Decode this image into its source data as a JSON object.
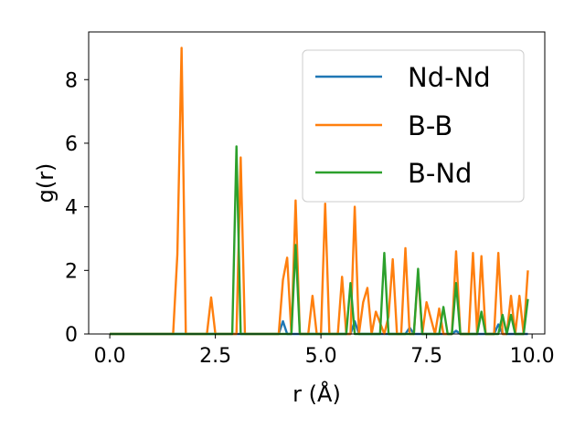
{
  "chart_data": {
    "type": "line",
    "title": "",
    "xlabel": "r (Å)",
    "ylabel": "g(r)",
    "xlim": [
      -0.5,
      10.3
    ],
    "ylim": [
      0,
      9.5
    ],
    "xticks": [
      "0.0",
      "2.5",
      "5.0",
      "7.5",
      "10.0"
    ],
    "xtick_values": [
      0,
      2.5,
      5,
      7.5,
      10
    ],
    "yticks": [
      "0",
      "2",
      "4",
      "6",
      "8"
    ],
    "ytick_values": [
      0,
      2,
      4,
      6,
      8
    ],
    "grid": false,
    "legend_position": "top-right",
    "series": [
      {
        "name": "Nd-Nd",
        "color": "#1f77b4",
        "x": [
          0,
          4.0,
          4.1,
          4.2,
          5.7,
          5.8,
          5.9,
          7.0,
          7.1,
          7.2,
          8.1,
          8.2,
          8.3,
          9.1,
          9.2,
          9.3,
          9.9
        ],
        "y": [
          0,
          0,
          0.4,
          0,
          0,
          0.4,
          0,
          0,
          0.2,
          0,
          0,
          0.1,
          0,
          0,
          0.3,
          0,
          0
        ]
      },
      {
        "name": "B-B",
        "color": "#ff7f0e",
        "x": [
          0,
          1.5,
          1.6,
          1.7,
          1.8,
          2.3,
          2.4,
          2.5,
          3.0,
          3.1,
          3.2,
          4.0,
          4.1,
          4.2,
          4.3,
          4.4,
          4.5,
          4.7,
          4.8,
          4.9,
          5.0,
          5.1,
          5.2,
          5.4,
          5.5,
          5.6,
          5.7,
          5.8,
          5.9,
          6.0,
          6.1,
          6.2,
          6.3,
          6.5,
          6.6,
          6.7,
          6.8,
          6.9,
          7.0,
          7.1,
          7.2,
          7.3,
          7.4,
          7.5,
          7.6,
          7.7,
          7.8,
          7.9,
          8.0,
          8.1,
          8.2,
          8.3,
          8.4,
          8.5,
          8.6,
          8.7,
          8.8,
          8.9,
          9.0,
          9.1,
          9.2,
          9.3,
          9.4,
          9.5,
          9.6,
          9.7,
          9.8,
          9.9
        ],
        "y": [
          0,
          0,
          2.5,
          9.0,
          0,
          0,
          1.15,
          0,
          0,
          5.55,
          0,
          0,
          1.7,
          2.4,
          0,
          4.2,
          0,
          0,
          1.2,
          0,
          0,
          4.1,
          0,
          0,
          1.8,
          0,
          0,
          4.0,
          0,
          1.0,
          1.45,
          0,
          0.7,
          0,
          0.55,
          2.35,
          0,
          0,
          2.7,
          0,
          0,
          1.9,
          0,
          1.0,
          0.5,
          0,
          0.8,
          0,
          0,
          0,
          2.6,
          0,
          0,
          0,
          2.55,
          0,
          2.45,
          0,
          0,
          0,
          2.55,
          0,
          0,
          1.2,
          0,
          1.2,
          0,
          2.0
        ]
      },
      {
        "name": "B-Nd",
        "color": "#2ca02c",
        "x": [
          0,
          2.9,
          3.0,
          3.1,
          4.3,
          4.4,
          4.5,
          5.6,
          5.7,
          5.8,
          6.4,
          6.5,
          6.6,
          7.2,
          7.3,
          7.4,
          7.8,
          7.9,
          8.0,
          8.1,
          8.2,
          8.3,
          8.7,
          8.8,
          8.9,
          9.2,
          9.3,
          9.4,
          9.5,
          9.6,
          9.8,
          9.9
        ],
        "y": [
          0,
          0,
          5.9,
          0,
          0,
          2.8,
          0,
          0,
          1.6,
          0,
          0,
          2.55,
          0,
          0,
          2.05,
          0,
          0,
          0.85,
          0,
          0,
          1.6,
          0,
          0,
          0.7,
          0,
          0,
          0.6,
          0,
          0.6,
          0,
          0,
          1.1
        ]
      }
    ]
  }
}
